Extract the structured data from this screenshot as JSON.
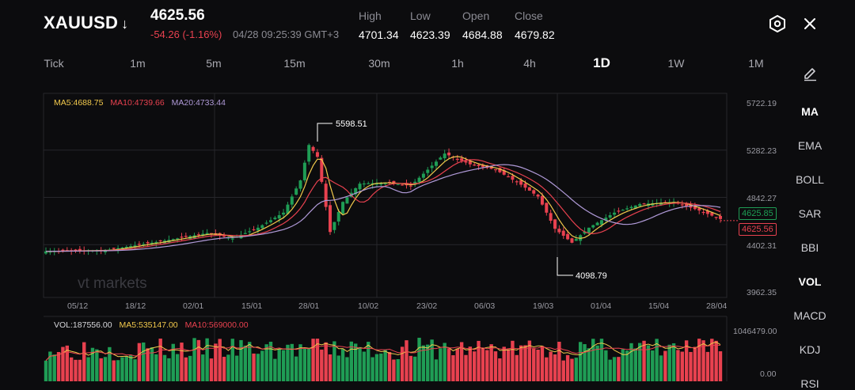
{
  "header": {
    "symbol": "XAUUSD",
    "direction_arrow": "↓",
    "price": "4625.56",
    "change": "-54.26 (-1.16%)",
    "datetime": "04/28 09:25:39 GMT+3",
    "stats": [
      {
        "label": "High",
        "value": "4701.34"
      },
      {
        "label": "Low",
        "value": "4623.39"
      },
      {
        "label": "Open",
        "value": "4684.88"
      },
      {
        "label": "Close",
        "value": "4679.82"
      }
    ],
    "settings_icon": "hexagon-settings-icon",
    "close_icon": "close-icon"
  },
  "timeframes": [
    "Tick",
    "1m",
    "5m",
    "15m",
    "30m",
    "1h",
    "4h",
    "1D",
    "1W",
    "1M"
  ],
  "active_timeframe": "1D",
  "indicators": [
    "MA",
    "EMA",
    "BOLL",
    "SAR",
    "BBI",
    "VOL",
    "MACD",
    "KDJ",
    "RSI"
  ],
  "active_indicators": [
    "MA",
    "VOL"
  ],
  "draw_icon": "pencil-icon",
  "chart": {
    "ma_legend": {
      "ma5": "MA5:4688.75",
      "ma10": "MA10:4739.66",
      "ma20": "MA20:4733.44"
    },
    "y_labels": [
      "5722.19",
      "5282.23",
      "4842.27",
      "4402.31",
      "3962.35"
    ],
    "x_labels": [
      "05/12",
      "18/12",
      "02/01",
      "15/01",
      "28/01",
      "10/02",
      "23/02",
      "06/03",
      "19/03",
      "01/04",
      "15/04",
      "28/04"
    ],
    "high_marker": "5598.51",
    "low_marker": "4098.79",
    "ma_tag": "4625.85",
    "last_tag": "4625.56",
    "watermark": "vt markets",
    "colors": {
      "up": "#1f9d55",
      "down": "#e8414f",
      "ma5": "#f2c94c",
      "ma10": "#e8414f",
      "ma20": "#b09ad8"
    }
  },
  "volume": {
    "legend": {
      "vol": "VOL:187556.00",
      "ma5": "MA5:535147.00",
      "ma10": "MA10:569000.00"
    },
    "y_labels": [
      "1046479.00",
      "0.00"
    ]
  }
}
